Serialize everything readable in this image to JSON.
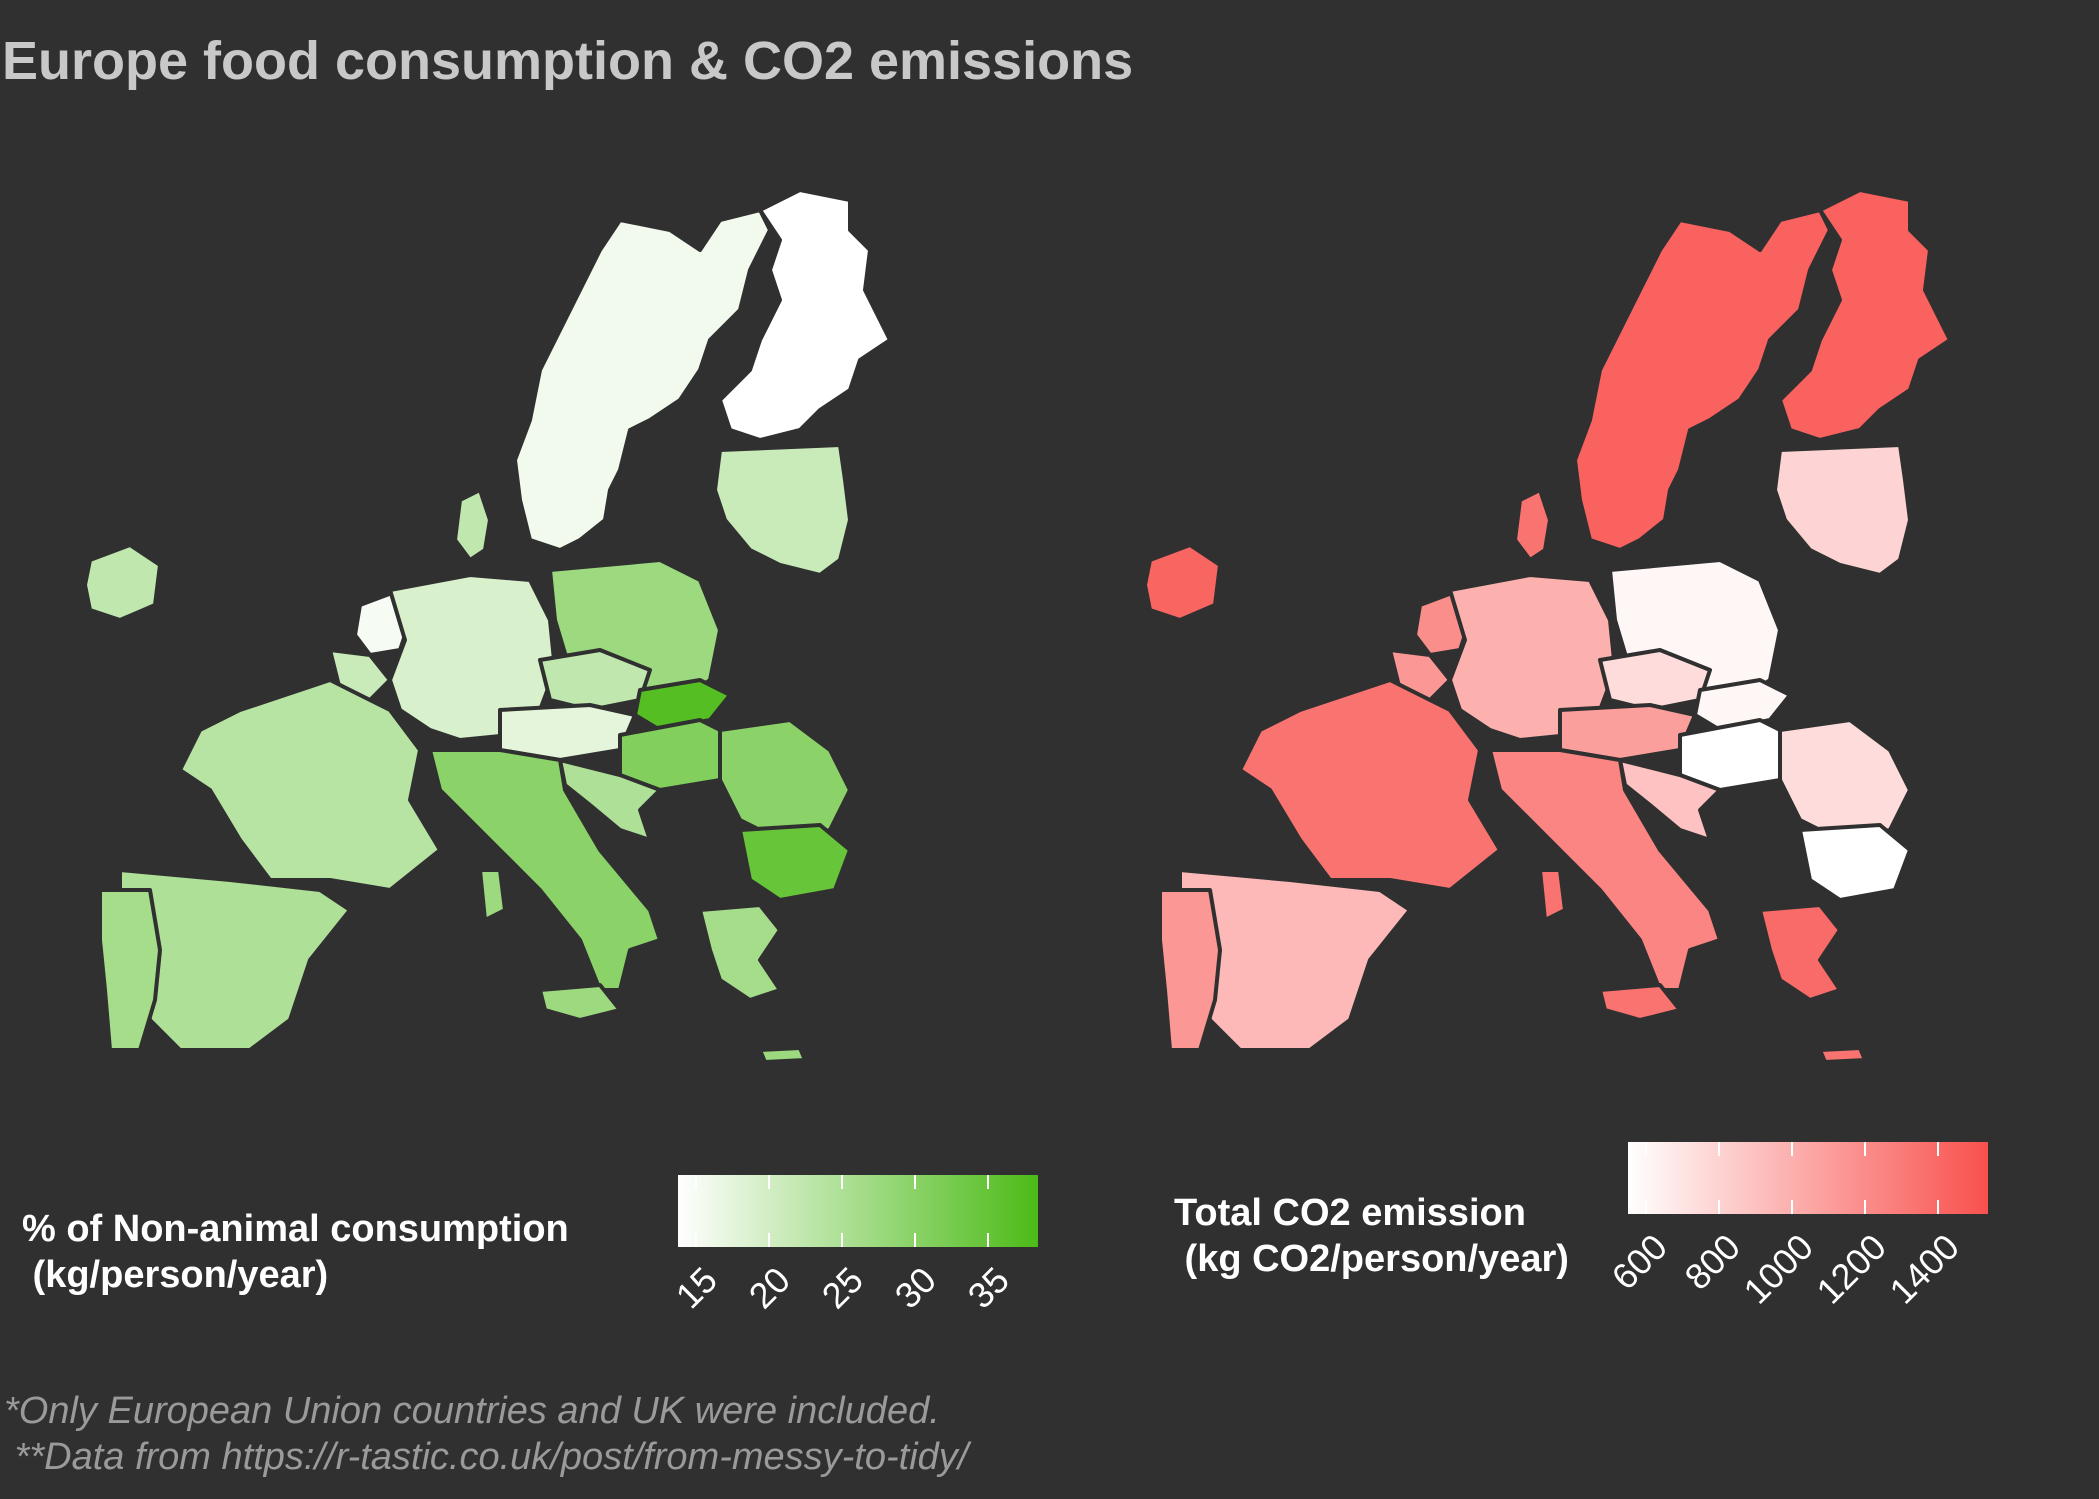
{
  "title": "Europe food consumption & CO2 emissions",
  "left_map": {
    "legend_title": "% of Non-animal consumption\n (kg/person/year)",
    "legend_ticks": [
      "15",
      "20",
      "25",
      "30",
      "35"
    ],
    "scale_low_color": "#ffffff",
    "scale_high_color": "#4cbb17",
    "values": {
      "sweden": 0.08,
      "finland": 0.0,
      "baltics": 0.3,
      "ireland": 0.35,
      "netherlands": 0.05,
      "belgium": 0.3,
      "denmark": 0.35,
      "germany": 0.22,
      "poland": 0.55,
      "czechia": 0.35,
      "slovakia": 0.95,
      "austria": 0.15,
      "hungary": 0.7,
      "slovenia_croatia": 0.45,
      "romania": 0.65,
      "bulgaria": 0.85,
      "greece": 0.5,
      "italy": 0.65,
      "france": 0.4,
      "spain": 0.45,
      "portugal": 0.5,
      "islands": 0.55
    }
  },
  "right_map": {
    "legend_title": "Total CO2 emission\n (kg CO2/person/year)",
    "legend_ticks": [
      "600",
      "800",
      "1000",
      "1200",
      "1400"
    ],
    "scale_low_color": "#ffffff",
    "scale_high_color": "#f8514d",
    "values": {
      "sweden": 0.9,
      "finland": 0.9,
      "baltics": 0.25,
      "ireland": 0.88,
      "netherlands": 0.65,
      "belgium": 0.6,
      "denmark": 0.8,
      "germany": 0.45,
      "poland": 0.05,
      "czechia": 0.2,
      "slovakia": 0.05,
      "austria": 0.55,
      "hungary": 0.0,
      "slovenia_croatia": 0.35,
      "romania": 0.2,
      "bulgaria": 0.0,
      "greece": 0.85,
      "italy": 0.7,
      "france": 0.8,
      "spain": 0.4,
      "portugal": 0.6,
      "islands": 0.8
    }
  },
  "captions": [
    "*Only European Union countries and UK were included.",
    " **Data from https://r-tastic.co.uk/post/from-messy-to-tidy/"
  ]
}
